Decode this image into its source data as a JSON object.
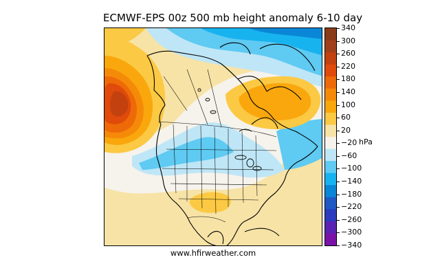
{
  "title": "ECMWF-EPS 00z 500 mb height anomaly 6-10 day",
  "credit": "www.hfirweather.com",
  "colorbar": {
    "unit": "hPa",
    "labels": [
      "340",
      "300",
      "260",
      "220",
      "180",
      "140",
      "100",
      "60",
      "20",
      "−20",
      "−60",
      "−100",
      "−140",
      "−180",
      "−220",
      "−260",
      "−300",
      "−340"
    ],
    "colors": [
      "#8a3b18",
      "#a0401a",
      "#c2410f",
      "#e04a0a",
      "#ee6a08",
      "#f58a08",
      "#f9a70d",
      "#fbc943",
      "#f7e3a6",
      "#f6f3ec",
      "#bfe6f6",
      "#5fcaf2",
      "#17b3ef",
      "#0a86d6",
      "#1f59c4",
      "#2a3bbd",
      "#5a22b2",
      "#7b12a8"
    ]
  },
  "map": {
    "colors": {
      "neutral": "#f6f3ec",
      "pos20": "#f7e3a6",
      "pos60": "#fbc943",
      "pos100": "#f9a70d",
      "pos140": "#f58a08",
      "pos180": "#ee6a08",
      "pos220": "#e04a0a",
      "pos260": "#c2410f",
      "neg20": "#bfe6f6",
      "neg60": "#5fcaf2",
      "neg100": "#17b3ef",
      "neg140": "#0a86d6",
      "land_line": "#000000"
    }
  }
}
